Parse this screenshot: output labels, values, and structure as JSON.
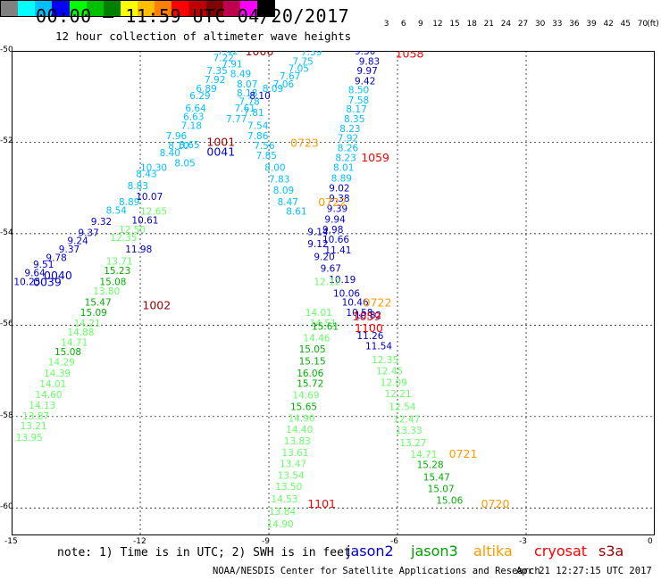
{
  "header": {
    "title": "00:00 – 11:59 UTC 04/20/2017",
    "subtitle": "12 hour collection of altimeter wave heights"
  },
  "scale": {
    "unit": "(ft)",
    "ticks": [
      "3",
      "6",
      "9",
      "12",
      "15",
      "18",
      "21",
      "24",
      "27",
      "30",
      "33",
      "36",
      "39",
      "42",
      "45",
      "70"
    ],
    "colors": [
      "#808080",
      "#00ffff",
      "#00bfff",
      "#0000ff",
      "#00ff00",
      "#00c000",
      "#008000",
      "#ffff00",
      "#ffbf00",
      "#ff8000",
      "#ff0000",
      "#c00000",
      "#800000",
      "#c0004e",
      "#ff00ff",
      "#000000"
    ]
  },
  "axes": {
    "lon": [
      -15,
      -12,
      -9,
      -6,
      -3,
      0
    ],
    "lat": [
      -50,
      -52,
      -54,
      -56,
      -58,
      -60
    ]
  },
  "satellites": [
    {
      "name": "jason2",
      "color": "#0000cc"
    },
    {
      "name": "jason3",
      "color": "#00a000"
    },
    {
      "name": "altika",
      "color": "#ff9900"
    },
    {
      "name": "cryosat",
      "color": "#ff0000"
    },
    {
      "name": "s3a",
      "color": "#990000"
    }
  ],
  "observations": [
    {
      "v": "7.42",
      "lon": -10.2,
      "lat": -50.0,
      "c": "#00bfff"
    },
    {
      "v": "7.22",
      "lon": -10.3,
      "lat": -50.15,
      "c": "#00bfff"
    },
    {
      "v": "7.91",
      "lon": -10.1,
      "lat": -50.28,
      "c": "#00bfff"
    },
    {
      "v": "7.35",
      "lon": -10.45,
      "lat": -50.43,
      "c": "#00bfff"
    },
    {
      "v": "8.49",
      "lon": -9.9,
      "lat": -50.5,
      "c": "#00bfff"
    },
    {
      "v": "7.92",
      "lon": -10.5,
      "lat": -50.62,
      "c": "#00bfff"
    },
    {
      "v": "8.07",
      "lon": -9.75,
      "lat": -50.72,
      "c": "#00bfff"
    },
    {
      "v": "6.89",
      "lon": -10.7,
      "lat": -50.82,
      "c": "#00bfff"
    },
    {
      "v": "8.18",
      "lon": -9.75,
      "lat": -50.92,
      "c": "#00bfff"
    },
    {
      "v": "6.29",
      "lon": -10.85,
      "lat": -50.98,
      "c": "#00bfff"
    },
    {
      "v": "7.78",
      "lon": -9.7,
      "lat": -51.1,
      "c": "#00bfff"
    },
    {
      "v": "6.64",
      "lon": -10.95,
      "lat": -51.25,
      "c": "#00bfff"
    },
    {
      "v": "7.61",
      "lon": -9.8,
      "lat": -51.25,
      "c": "#00bfff"
    },
    {
      "v": "7.81",
      "lon": -9.6,
      "lat": -51.35,
      "c": "#00bfff"
    },
    {
      "v": "6.63",
      "lon": -11.0,
      "lat": -51.43,
      "c": "#00bfff"
    },
    {
      "v": "7.54",
      "lon": -9.5,
      "lat": -51.63,
      "c": "#00bfff"
    },
    {
      "v": "7.18",
      "lon": -11.05,
      "lat": -51.63,
      "c": "#00bfff"
    },
    {
      "v": "7.96",
      "lon": -11.4,
      "lat": -51.85,
      "c": "#00bfff"
    },
    {
      "v": "7.86",
      "lon": -9.5,
      "lat": -51.85,
      "c": "#00bfff"
    },
    {
      "v": "8.10",
      "lon": -11.35,
      "lat": -52.07,
      "c": "#00bfff"
    },
    {
      "v": "7.56",
      "lon": -9.35,
      "lat": -52.07,
      "c": "#00bfff"
    },
    {
      "v": "8.40",
      "lon": -11.55,
      "lat": -52.23,
      "c": "#00bfff"
    },
    {
      "v": "7.85",
      "lon": -9.3,
      "lat": -52.28,
      "c": "#00bfff"
    },
    {
      "v": "10.30",
      "lon": -12.0,
      "lat": -52.55,
      "c": "#00bfff"
    },
    {
      "v": "8.00",
      "lon": -9.1,
      "lat": -52.55,
      "c": "#00bfff"
    },
    {
      "v": "8.43",
      "lon": -12.1,
      "lat": -52.68,
      "c": "#00bfff"
    },
    {
      "v": "7.83",
      "lon": -9.0,
      "lat": -52.8,
      "c": "#00bfff"
    },
    {
      "v": "8.83",
      "lon": -12.3,
      "lat": -52.95,
      "c": "#00bfff"
    },
    {
      "v": "8.09",
      "lon": -8.9,
      "lat": -53.05,
      "c": "#00bfff"
    },
    {
      "v": "8.89",
      "lon": -12.5,
      "lat": -53.3,
      "c": "#00bfff"
    },
    {
      "v": "8.47",
      "lon": -8.8,
      "lat": -53.3,
      "c": "#00bfff"
    },
    {
      "v": "8.54",
      "lon": -12.8,
      "lat": -53.48,
      "c": "#00bfff"
    },
    {
      "v": "8.61",
      "lon": -8.6,
      "lat": -53.5,
      "c": "#00bfff"
    },
    {
      "v": "9.32",
      "lon": -13.15,
      "lat": -53.73,
      "c": "#0000cc"
    },
    {
      "v": "9.37",
      "lon": -13.45,
      "lat": -53.97,
      "c": "#0000cc"
    },
    {
      "v": "9.24",
      "lon": -13.7,
      "lat": -54.15,
      "c": "#0000cc"
    },
    {
      "v": "9.37",
      "lon": -13.9,
      "lat": -54.33,
      "c": "#0000cc"
    },
    {
      "v": "9.78",
      "lon": -14.2,
      "lat": -54.52,
      "c": "#0000cc"
    },
    {
      "v": "9.51",
      "lon": -14.5,
      "lat": -54.67,
      "c": "#0000cc"
    },
    {
      "v": "9.64",
      "lon": -14.7,
      "lat": -54.85,
      "c": "#0000cc"
    },
    {
      "v": "10.25",
      "lon": -14.95,
      "lat": -55.05,
      "c": "#0000cc"
    },
    {
      "v": "10.61",
      "lon": -12.2,
      "lat": -53.7,
      "c": "#0000cc"
    },
    {
      "v": "10.07",
      "lon": -12.1,
      "lat": -53.18,
      "c": "#0000cc"
    },
    {
      "v": "11.98",
      "lon": -12.35,
      "lat": -54.33,
      "c": "#0000cc"
    },
    {
      "v": "12.65",
      "lon": -12.0,
      "lat": -53.5,
      "c": "#66ff66"
    },
    {
      "v": "12.50",
      "lon": -12.5,
      "lat": -53.9,
      "c": "#66ff66"
    },
    {
      "v": "12.35",
      "lon": -12.7,
      "lat": -54.08,
      "c": "#66ff66"
    },
    {
      "v": "13.71",
      "lon": -12.8,
      "lat": -54.6,
      "c": "#66ff66"
    },
    {
      "v": "15.23",
      "lon": -12.85,
      "lat": -54.8,
      "c": "#00b000"
    },
    {
      "v": "15.08",
      "lon": -12.95,
      "lat": -55.05,
      "c": "#00b000"
    },
    {
      "v": "13.80",
      "lon": -13.1,
      "lat": -55.25,
      "c": "#66ff66"
    },
    {
      "v": "15.47",
      "lon": -13.3,
      "lat": -55.5,
      "c": "#00b000"
    },
    {
      "v": "15.09",
      "lon": -13.4,
      "lat": -55.72,
      "c": "#00b000"
    },
    {
      "v": "14.21",
      "lon": -13.55,
      "lat": -55.95,
      "c": "#66ff66"
    },
    {
      "v": "14.88",
      "lon": -13.7,
      "lat": -56.15,
      "c": "#66ff66"
    },
    {
      "v": "14.71",
      "lon": -13.85,
      "lat": -56.37,
      "c": "#66ff66"
    },
    {
      "v": "15.08",
      "lon": -14.0,
      "lat": -56.58,
      "c": "#00b000"
    },
    {
      "v": "14.29",
      "lon": -14.15,
      "lat": -56.8,
      "c": "#66ff66"
    },
    {
      "v": "14.39",
      "lon": -14.25,
      "lat": -57.05,
      "c": "#66ff66"
    },
    {
      "v": "14.01",
      "lon": -14.35,
      "lat": -57.28,
      "c": "#66ff66"
    },
    {
      "v": "14.60",
      "lon": -14.45,
      "lat": -57.52,
      "c": "#66ff66"
    },
    {
      "v": "14.13",
      "lon": -14.6,
      "lat": -57.75,
      "c": "#66ff66"
    },
    {
      "v": "13.87",
      "lon": -14.75,
      "lat": -57.98,
      "c": "#66ff66"
    },
    {
      "v": "13.21",
      "lon": -14.8,
      "lat": -58.2,
      "c": "#66ff66"
    },
    {
      "v": "13.95",
      "lon": -14.9,
      "lat": -58.45,
      "c": "#66ff66"
    },
    {
      "v": "7.39",
      "lon": -8.25,
      "lat": -50.02,
      "c": "#00bfff"
    },
    {
      "v": "7.75",
      "lon": -8.45,
      "lat": -50.22,
      "c": "#00bfff"
    },
    {
      "v": "7.05",
      "lon": -8.55,
      "lat": -50.38,
      "c": "#00bfff"
    },
    {
      "v": "7.67",
      "lon": -8.75,
      "lat": -50.55,
      "c": "#00bfff"
    },
    {
      "v": "7.06",
      "lon": -8.9,
      "lat": -50.72,
      "c": "#00bfff"
    },
    {
      "v": "8.09",
      "lon": -9.15,
      "lat": -50.82,
      "c": "#00bfff"
    },
    {
      "v": "8.10",
      "lon": -9.45,
      "lat": -50.98,
      "c": "#0000cc"
    },
    {
      "v": "9.14",
      "lon": -8.1,
      "lat": -53.95,
      "c": "#0000cc"
    },
    {
      "v": "9.12",
      "lon": -8.1,
      "lat": -54.22,
      "c": "#0000cc"
    },
    {
      "v": "9.20",
      "lon": -7.95,
      "lat": -54.5,
      "c": "#0000cc"
    },
    {
      "v": "9.67",
      "lon": -7.8,
      "lat": -54.75,
      "c": "#0000cc"
    },
    {
      "v": "10.19",
      "lon": -7.6,
      "lat": -55.0,
      "c": "#0000cc"
    },
    {
      "v": "10.06",
      "lon": -7.5,
      "lat": -55.3,
      "c": "#0000cc"
    },
    {
      "v": "10.46",
      "lon": -7.3,
      "lat": -55.5,
      "c": "#0000cc"
    },
    {
      "v": "10.58",
      "lon": -7.2,
      "lat": -55.72,
      "c": "#0000cc"
    },
    {
      "v": "9.30",
      "lon": -7.0,
      "lat": -50.0,
      "c": "#0000cc"
    },
    {
      "v": "9.83",
      "lon": -6.9,
      "lat": -50.22,
      "c": "#0000cc"
    },
    {
      "v": "9.97",
      "lon": -6.95,
      "lat": -50.43,
      "c": "#0000cc"
    },
    {
      "v": "9.42",
      "lon": -7.0,
      "lat": -50.65,
      "c": "#0000cc"
    },
    {
      "v": "8.50",
      "lon": -7.15,
      "lat": -50.85,
      "c": "#00bfff"
    },
    {
      "v": "7.58",
      "lon": -7.15,
      "lat": -51.07,
      "c": "#00bfff"
    },
    {
      "v": "8.17",
      "lon": -7.2,
      "lat": -51.27,
      "c": "#00bfff"
    },
    {
      "v": "8.35",
      "lon": -7.25,
      "lat": -51.48,
      "c": "#00bfff"
    },
    {
      "v": "8.23",
      "lon": -7.35,
      "lat": -51.7,
      "c": "#00bfff"
    },
    {
      "v": "7.92",
      "lon": -7.4,
      "lat": -51.9,
      "c": "#00bfff"
    },
    {
      "v": "8.26",
      "lon": -7.4,
      "lat": -52.12,
      "c": "#00bfff"
    },
    {
      "v": "8.23",
      "lon": -7.45,
      "lat": -52.33,
      "c": "#00bfff"
    },
    {
      "v": "8.01",
      "lon": -7.5,
      "lat": -52.55,
      "c": "#00bfff"
    },
    {
      "v": "8.89",
      "lon": -7.55,
      "lat": -52.78,
      "c": "#00bfff"
    },
    {
      "v": "9.02",
      "lon": -7.6,
      "lat": -53.0,
      "c": "#0000cc"
    },
    {
      "v": "9.38",
      "lon": -7.6,
      "lat": -53.22,
      "c": "#0000cc"
    },
    {
      "v": "9.39",
      "lon": -7.65,
      "lat": -53.45,
      "c": "#0000cc"
    },
    {
      "v": "9.94",
      "lon": -7.7,
      "lat": -53.68,
      "c": "#0000cc"
    },
    {
      "v": "9.98",
      "lon": -7.75,
      "lat": -53.9,
      "c": "#0000cc"
    },
    {
      "v": "10.66",
      "lon": -7.75,
      "lat": -54.12,
      "c": "#0000cc"
    },
    {
      "v": "11.41",
      "lon": -7.7,
      "lat": -54.35,
      "c": "#0000cc"
    },
    {
      "v": "11.26",
      "lon": -6.95,
      "lat": -56.23,
      "c": "#0000cc"
    },
    {
      "v": "11.54",
      "lon": -6.75,
      "lat": -56.45,
      "c": "#0000cc"
    },
    {
      "v": "10.82",
      "lon": -7.0,
      "lat": -55.78,
      "c": "#0000cc"
    },
    {
      "v": "12.12",
      "lon": -7.95,
      "lat": -55.05,
      "c": "#66ff66"
    },
    {
      "v": "14.01",
      "lon": -8.15,
      "lat": -55.72,
      "c": "#66ff66"
    },
    {
      "v": "14.51",
      "lon": -8.05,
      "lat": -55.95,
      "c": "#66ff66"
    },
    {
      "v": "15.61",
      "lon": -8.0,
      "lat": -56.02,
      "c": "#00b000"
    },
    {
      "v": "14.46",
      "lon": -8.2,
      "lat": -56.28,
      "c": "#66ff66"
    },
    {
      "v": "15.05",
      "lon": -8.3,
      "lat": -56.52,
      "c": "#00b000"
    },
    {
      "v": "15.15",
      "lon": -8.3,
      "lat": -56.78,
      "c": "#00b000"
    },
    {
      "v": "16.06",
      "lon": -8.35,
      "lat": -57.05,
      "c": "#00b000"
    },
    {
      "v": "15.72",
      "lon": -8.35,
      "lat": -57.27,
      "c": "#00b000"
    },
    {
      "v": "14.69",
      "lon": -8.45,
      "lat": -57.53,
      "c": "#66ff66"
    },
    {
      "v": "15.65",
      "lon": -8.5,
      "lat": -57.78,
      "c": "#00b000"
    },
    {
      "v": "14.90",
      "lon": -8.55,
      "lat": -58.03,
      "c": "#66ff66"
    },
    {
      "v": "14.40",
      "lon": -8.6,
      "lat": -58.28,
      "c": "#66ff66"
    },
    {
      "v": "13.83",
      "lon": -8.65,
      "lat": -58.53,
      "c": "#66ff66"
    },
    {
      "v": "13.61",
      "lon": -8.7,
      "lat": -58.78,
      "c": "#66ff66"
    },
    {
      "v": "13.47",
      "lon": -8.75,
      "lat": -59.03,
      "c": "#66ff66"
    },
    {
      "v": "13.54",
      "lon": -8.8,
      "lat": -59.28,
      "c": "#66ff66"
    },
    {
      "v": "13.50",
      "lon": -8.85,
      "lat": -59.53,
      "c": "#66ff66"
    },
    {
      "v": "14.53",
      "lon": -8.95,
      "lat": -59.8,
      "c": "#66ff66"
    },
    {
      "v": "13.84",
      "lon": -9.0,
      "lat": -60.07,
      "c": "#66ff66"
    },
    {
      "v": "14.90",
      "lon": -9.05,
      "lat": -60.35,
      "c": "#66ff66"
    },
    {
      "v": "12.35",
      "lon": -6.6,
      "lat": -56.75,
      "c": "#66ff66"
    },
    {
      "v": "12.45",
      "lon": -6.5,
      "lat": -57.0,
      "c": "#66ff66"
    },
    {
      "v": "12.09",
      "lon": -6.4,
      "lat": -57.25,
      "c": "#66ff66"
    },
    {
      "v": "12.21",
      "lon": -6.3,
      "lat": -57.5,
      "c": "#66ff66"
    },
    {
      "v": "12.54",
      "lon": -6.2,
      "lat": -57.78,
      "c": "#66ff66"
    },
    {
      "v": "12.47",
      "lon": -6.1,
      "lat": -58.05,
      "c": "#66ff66"
    },
    {
      "v": "13.33",
      "lon": -6.05,
      "lat": -58.3,
      "c": "#66ff66"
    },
    {
      "v": "13.27",
      "lon": -5.95,
      "lat": -58.57,
      "c": "#66ff66"
    },
    {
      "v": "14.71",
      "lon": -5.7,
      "lat": -58.82,
      "c": "#66ff66"
    },
    {
      "v": "15.28",
      "lon": -5.55,
      "lat": -59.05,
      "c": "#00b000"
    },
    {
      "v": "15.47",
      "lon": -5.4,
      "lat": -59.32,
      "c": "#00b000"
    },
    {
      "v": "15.07",
      "lon": -5.3,
      "lat": -59.58,
      "c": "#00b000"
    },
    {
      "v": "15.06",
      "lon": -5.1,
      "lat": -59.83,
      "c": "#00b000"
    },
    {
      "v": "7.77",
      "lon": -10.0,
      "lat": -51.48,
      "c": "#00bfff"
    },
    {
      "v": "8.05",
      "lon": -11.2,
      "lat": -52.45,
      "c": "#00bfff"
    },
    {
      "v": "8.65",
      "lon": -11.1,
      "lat": -52.05,
      "c": "#00bfff"
    }
  ],
  "passes": [
    {
      "t": "1000",
      "lon": -9.55,
      "lat": -50.0,
      "c": "#990000"
    },
    {
      "t": "1058",
      "lon": -6.05,
      "lat": -50.05,
      "c": "#ff0000"
    },
    {
      "t": "1001",
      "lon": -10.45,
      "lat": -51.98,
      "c": "#990000"
    },
    {
      "t": "0723",
      "lon": -8.5,
      "lat": -52.0,
      "c": "#ff9900"
    },
    {
      "t": "0041",
      "lon": -10.45,
      "lat": -52.2,
      "c": "#0000cc"
    },
    {
      "t": "1059",
      "lon": -6.85,
      "lat": -52.32,
      "c": "#ff0000"
    },
    {
      "t": "0722",
      "lon": -7.85,
      "lat": -53.3,
      "c": "#ff9900"
    },
    {
      "t": "0040",
      "lon": -14.25,
      "lat": -54.9,
      "c": "#0000cc"
    },
    {
      "t": "0039",
      "lon": -14.5,
      "lat": -55.05,
      "c": "#0000cc"
    },
    {
      "t": "1002",
      "lon": -11.95,
      "lat": -55.55,
      "c": "#990000"
    },
    {
      "t": "0722",
      "lon": -6.8,
      "lat": -55.5,
      "c": "#ff9900"
    },
    {
      "t": "1059",
      "lon": -7.05,
      "lat": -55.8,
      "c": "#ff0000"
    },
    {
      "t": "1100",
      "lon": -7.0,
      "lat": -56.05,
      "c": "#ff0000"
    },
    {
      "t": "0721",
      "lon": -4.8,
      "lat": -58.8,
      "c": "#ff9900"
    },
    {
      "t": "1101",
      "lon": -8.1,
      "lat": -59.9,
      "c": "#ff0000"
    },
    {
      "t": "0720",
      "lon": -4.05,
      "lat": -59.9,
      "c": "#ff9900"
    }
  ],
  "footer": {
    "note": "note: 1) Time is in UTC; 2) SWH is in feet",
    "credit": "NOAA/NESDIS Center for Satellite Applications and Research",
    "timestamp": "Apr 21 12:27:15 UTC 2017"
  }
}
